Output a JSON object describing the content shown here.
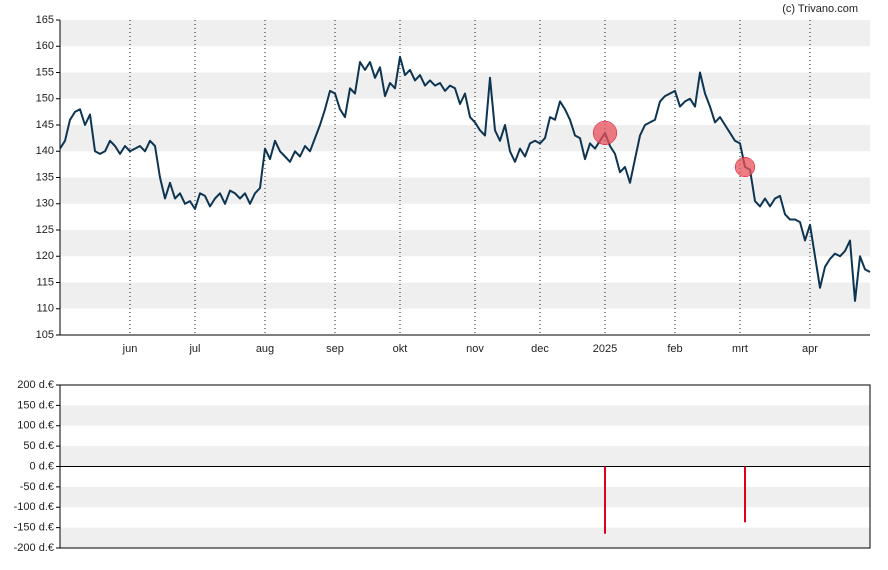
{
  "chart_data": {
    "type": "line",
    "credit": "(c) Trivano.com",
    "categories": [
      null,
      null,
      null,
      null,
      null,
      null,
      null,
      null,
      null,
      null,
      null,
      null,
      null,
      null,
      "jun",
      null,
      null,
      null,
      null,
      null,
      null,
      null,
      null,
      null,
      null,
      null,
      null,
      "jul",
      null,
      null,
      null,
      null,
      null,
      null,
      null,
      null,
      null,
      null,
      null,
      null,
      null,
      "aug",
      null,
      null,
      null,
      null,
      null,
      null,
      null,
      null,
      null,
      null,
      null,
      null,
      null,
      "sep",
      null,
      null,
      null,
      null,
      null,
      null,
      null,
      null,
      null,
      null,
      null,
      null,
      "okt",
      null,
      null,
      null,
      null,
      null,
      null,
      null,
      null,
      null,
      null,
      null,
      null,
      null,
      null,
      "nov",
      null,
      null,
      null,
      null,
      null,
      null,
      null,
      null,
      null,
      null,
      null,
      null,
      "dec",
      null,
      null,
      null,
      null,
      null,
      null,
      null,
      null,
      null,
      null,
      null,
      null,
      "2025",
      null,
      null,
      null,
      null,
      null,
      null,
      null,
      null,
      null,
      null,
      null,
      null,
      null,
      "feb",
      null,
      null,
      null,
      null,
      null,
      null,
      null,
      null,
      null,
      null,
      null,
      null,
      "mrt",
      null,
      null,
      null,
      null,
      null,
      null,
      null,
      null,
      null,
      null,
      null,
      null,
      null,
      "apr",
      null,
      null,
      null,
      null,
      null,
      null,
      null,
      null,
      null,
      null,
      null,
      null
    ],
    "series": [
      {
        "color": "#0d3552",
        "values": [
          140.5,
          142,
          146,
          147.5,
          148,
          145,
          147,
          140,
          139.5,
          140,
          142,
          141,
          139.5,
          141,
          140,
          140.5,
          141,
          140,
          142,
          141,
          135,
          131,
          134,
          131,
          132,
          130,
          130.5,
          129,
          132,
          131.5,
          129.5,
          131,
          132,
          130,
          132.5,
          132,
          131,
          132,
          130,
          132,
          133,
          140.5,
          138.5,
          142,
          140,
          139,
          138,
          140,
          139,
          141,
          140,
          142.5,
          145,
          148,
          151.5,
          151,
          148,
          146.5,
          152,
          151,
          157,
          155.5,
          157,
          154,
          156,
          150.5,
          153,
          152,
          158,
          154.5,
          155.5,
          153.5,
          154.5,
          152.5,
          153.5,
          152.5,
          153,
          151.5,
          152.5,
          152,
          149,
          151,
          146.5,
          145.5,
          144,
          143,
          154,
          144,
          142,
          145,
          140,
          138,
          140.5,
          139,
          141.5,
          142,
          141.5,
          142.5,
          146.5,
          146,
          149.5,
          148,
          146,
          143,
          142.5,
          138.5,
          141.5,
          140.5,
          142,
          143.5,
          141,
          139.5,
          136,
          137,
          134,
          138.5,
          143,
          145,
          145.5,
          146,
          149.5,
          150.5,
          151,
          151.5,
          148.5,
          149.5,
          150,
          148.5,
          155,
          151,
          148.5,
          145.5,
          146.5,
          145,
          143.5,
          142,
          141.5,
          137,
          136.5,
          130.5,
          129.5,
          131,
          129.5,
          131,
          131.5,
          128,
          127,
          127,
          126.5,
          123,
          126,
          120,
          114,
          118,
          119.5,
          120.5,
          120,
          121,
          123,
          111.5,
          120,
          117.5,
          117
        ]
      }
    ],
    "ylim": [
      105,
      165
    ],
    "yticks": [
      105,
      110,
      115,
      120,
      125,
      130,
      135,
      140,
      145,
      150,
      155,
      160,
      165
    ],
    "marker_color": "#e8505b",
    "dividends": {
      "type": "bar",
      "color": "#e0001b",
      "values": [
        null,
        null,
        null,
        null,
        null,
        null,
        null,
        null,
        null,
        null,
        null,
        null,
        null,
        null,
        null,
        null,
        null,
        null,
        null,
        null,
        null,
        null,
        null,
        null,
        null,
        null,
        null,
        null,
        null,
        null,
        null,
        null,
        null,
        null,
        null,
        null,
        null,
        null,
        null,
        null,
        null,
        null,
        null,
        null,
        null,
        null,
        null,
        null,
        null,
        null,
        null,
        null,
        null,
        null,
        null,
        null,
        null,
        null,
        null,
        null,
        null,
        null,
        null,
        null,
        null,
        null,
        null,
        null,
        null,
        null,
        null,
        null,
        null,
        null,
        null,
        null,
        null,
        null,
        null,
        null,
        null,
        null,
        null,
        null,
        null,
        null,
        null,
        null,
        null,
        null,
        null,
        null,
        null,
        null,
        null,
        null,
        null,
        null,
        null,
        null,
        null,
        null,
        null,
        null,
        null,
        null,
        null,
        null,
        null,
        -165,
        null,
        null,
        null,
        null,
        null,
        null,
        null,
        null,
        null,
        null,
        null,
        null,
        null,
        null,
        null,
        null,
        null,
        null,
        null,
        null,
        null,
        null,
        null,
        null,
        null,
        null,
        null,
        -137,
        null,
        null,
        null,
        null,
        null,
        null,
        null,
        null,
        null,
        null,
        null,
        null,
        null,
        null,
        null,
        null,
        null,
        null,
        null,
        null,
        null,
        null,
        null,
        null,
        null
      ],
      "ylim": [
        -200,
        200
      ],
      "yticks": [
        {
          "value": 200,
          "label": "200 d.€"
        },
        {
          "value": 150,
          "label": "150 d.€"
        },
        {
          "value": 100,
          "label": "100 d.€"
        },
        {
          "value": 50,
          "label": "50 d.€"
        },
        {
          "value": 0,
          "label": "0 d.€"
        },
        {
          "value": -50,
          "label": "-50 d.€"
        },
        {
          "value": -100,
          "label": "-100 d.€"
        },
        {
          "value": -150,
          "label": "-150 d.€"
        },
        {
          "value": -200,
          "label": "-200 d.€"
        }
      ]
    }
  }
}
